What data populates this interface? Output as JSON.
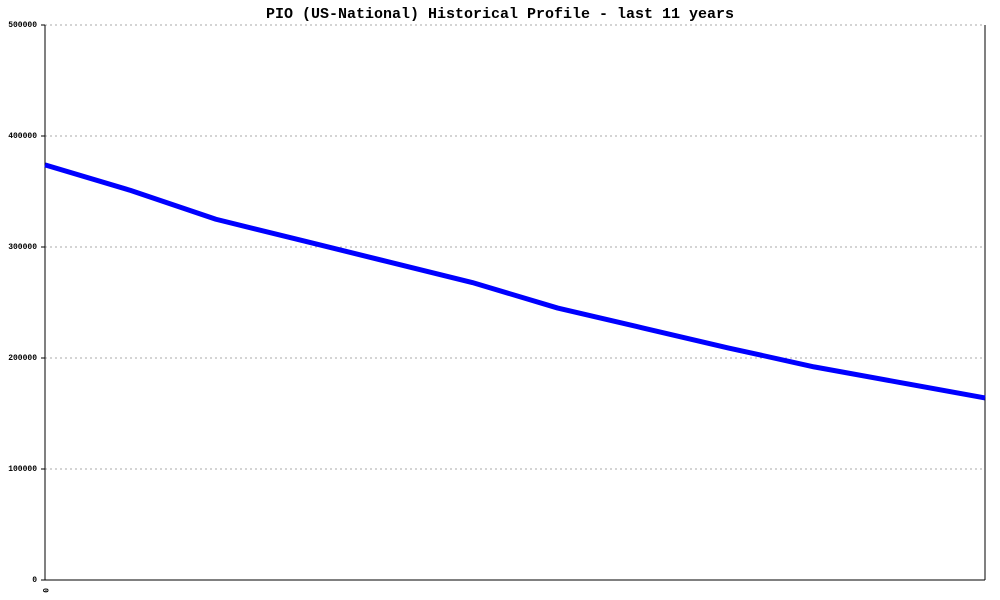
{
  "chart_data": {
    "type": "line",
    "title": "PIO (US-National) Historical Profile - last 11 years",
    "categories": [
      "0",
      null,
      null,
      null,
      null,
      null,
      null,
      null,
      null,
      null,
      null,
      null
    ],
    "series": [
      {
        "name": "PIO",
        "color": "#0000ff",
        "values": [
          374000,
          351000,
          325000,
          306000,
          287000,
          268000,
          245000,
          227000,
          209000,
          192000,
          178000,
          164000
        ]
      }
    ],
    "ylim": [
      0,
      500000
    ],
    "yticks": [
      0,
      100000,
      200000,
      300000,
      400000,
      500000
    ],
    "grid": true
  }
}
